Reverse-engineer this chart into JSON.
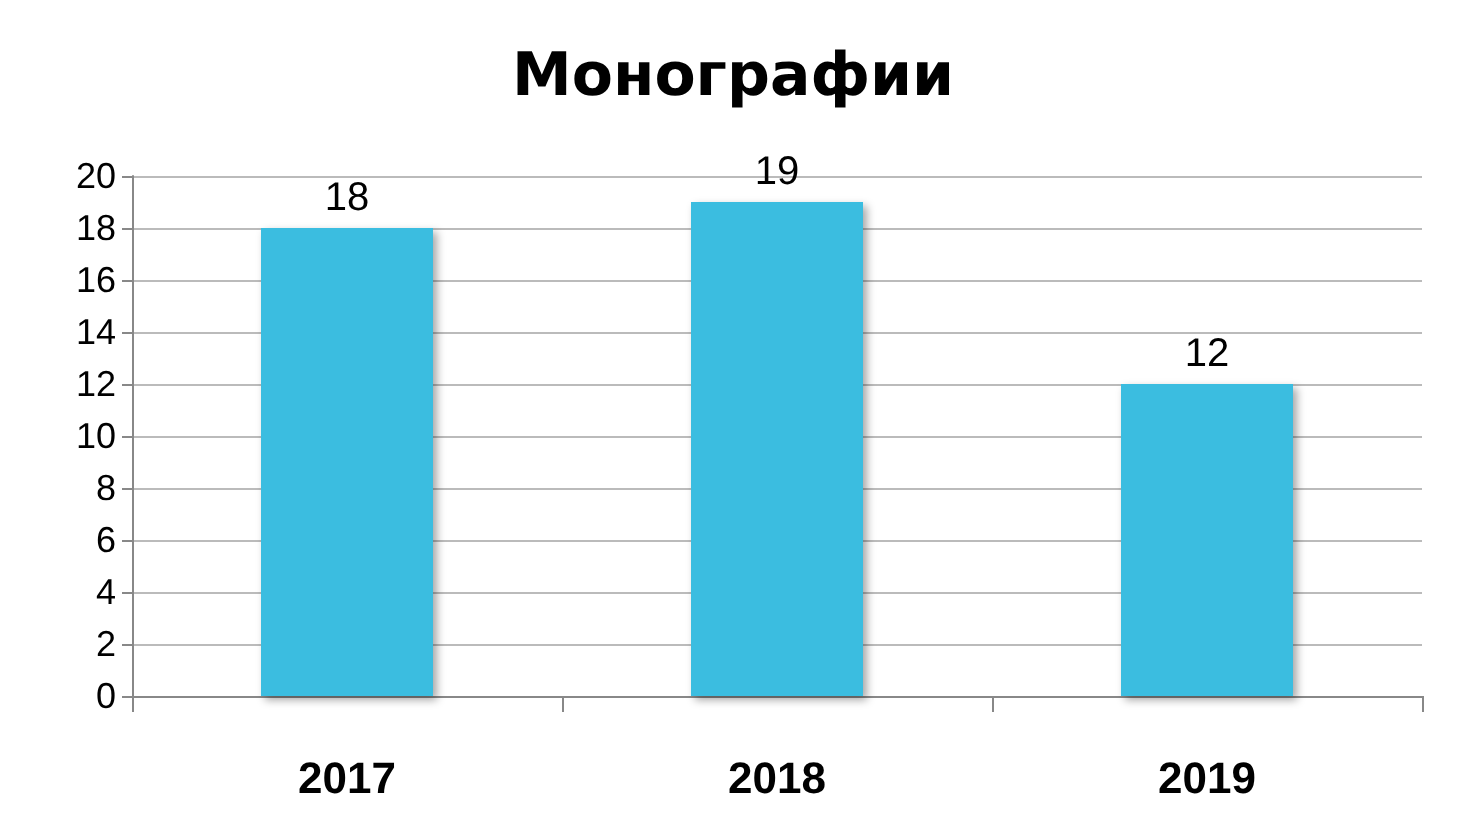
{
  "chart_data": {
    "type": "bar",
    "title": "Монографии",
    "categories": [
      "2017",
      "2018",
      "2019"
    ],
    "values": [
      18,
      19,
      12
    ],
    "color": "#3bbde0",
    "ylim": [
      0,
      20
    ],
    "yticks": [
      0,
      2,
      4,
      6,
      8,
      10,
      12,
      14,
      16,
      18,
      20
    ],
    "grid": "y",
    "data_labels": true
  }
}
